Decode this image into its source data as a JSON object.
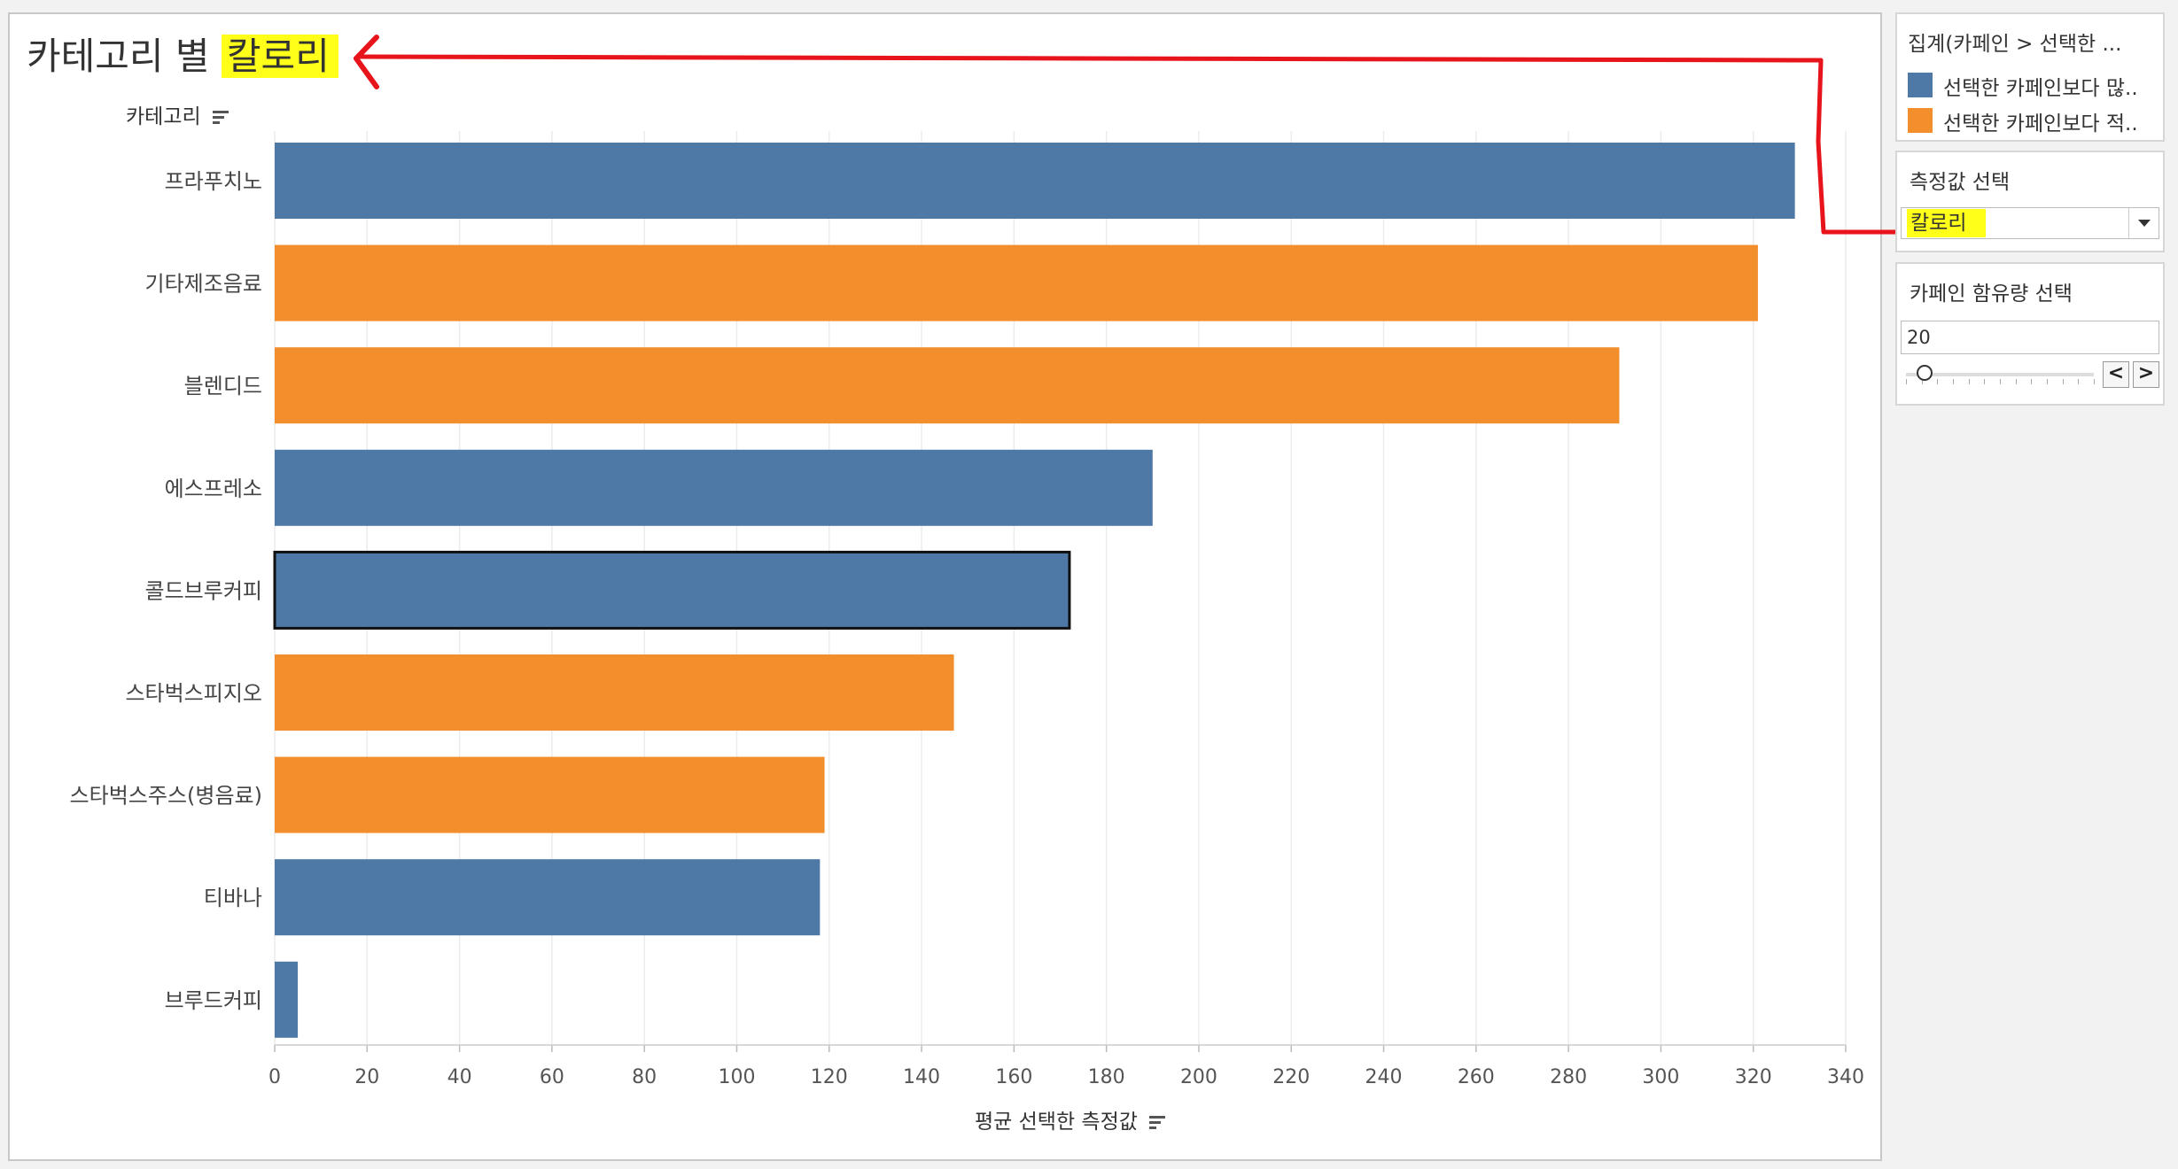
{
  "title": {
    "prefix": "카테고리 별",
    "highlight": "칼로리"
  },
  "row_header": "카테고리",
  "legend": {
    "title": "집계(카페인 > 선택한 ...",
    "items": [
      {
        "label": "선택한 카페인보다 많..",
        "color": "#4e79a7"
      },
      {
        "label": "선택한 카페인보다 적..",
        "color": "#f28e2b"
      }
    ]
  },
  "measure_select": {
    "title": "측정값 선택",
    "value": "칼로리"
  },
  "caffeine_param": {
    "title": "카페인 함유량 선택",
    "value": "20",
    "prev_label": "<",
    "next_label": ">"
  },
  "colors": {
    "more": "#4e79a7",
    "less": "#f28e2b",
    "highlight": "#ffff1a",
    "annotation": "#e8141c"
  },
  "chart_data": {
    "type": "bar",
    "orientation": "horizontal",
    "categories": [
      "프라푸치노",
      "기타제조음료",
      "블렌디드",
      "에스프레소",
      "콜드브루커피",
      "스타벅스피지오",
      "스타벅스주스(병음료)",
      "티바나",
      "브루드커피"
    ],
    "values": [
      329,
      321,
      291,
      190,
      172,
      147,
      119,
      118,
      5
    ],
    "groups": [
      "more",
      "less",
      "less",
      "more",
      "more",
      "less",
      "less",
      "more",
      "more"
    ],
    "selected_category": "콜드브루커피",
    "xlabel": "평균 선택한 측정값",
    "xlim": [
      0,
      340
    ],
    "xticks": [
      0,
      20,
      40,
      60,
      80,
      100,
      120,
      140,
      160,
      180,
      200,
      220,
      240,
      260,
      280,
      300,
      320,
      340
    ],
    "grid": true
  }
}
